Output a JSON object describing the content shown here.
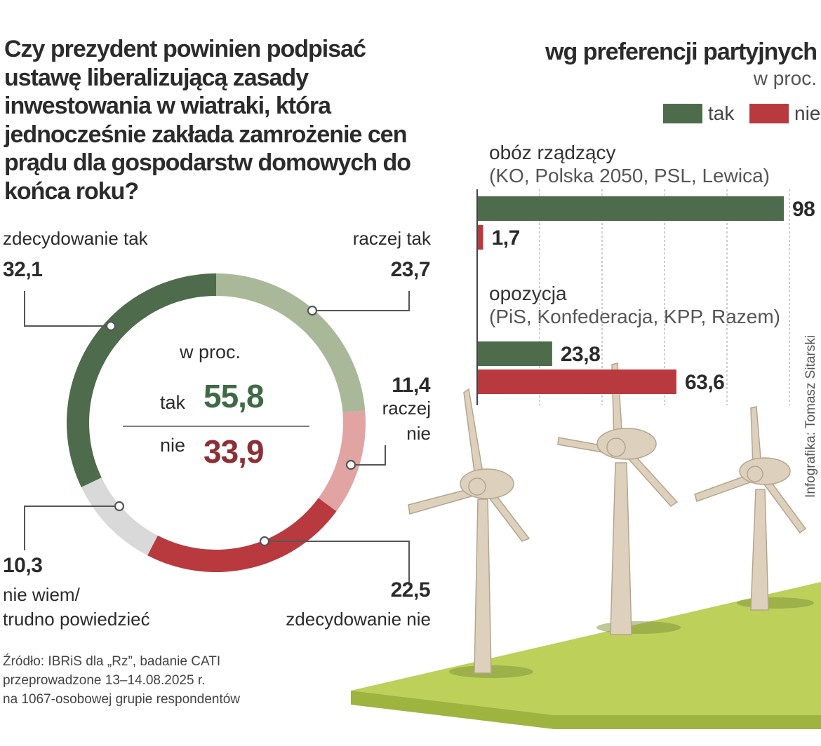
{
  "question": "Czy prezydent powinien podpisać ustawę liberalizującą zasady inwestowania w wiatraki, która jednocześnie zakłada zamrożenie cen prądu dla gospodarstw domowych do końca roku?",
  "colors": {
    "zdecydowanie_tak": "#4e6b4c",
    "raczej_tak": "#a9b898",
    "raczej_nie": "#e2a3a3",
    "zdecydowanie_nie": "#b83a3f",
    "nie_wiem": "#d9d9d9",
    "tak": "#4e6b4c",
    "nie": "#b83a3f",
    "tak_total": "#3e6a45",
    "nie_total": "#8d2f36"
  },
  "chart_data": [
    {
      "type": "pie",
      "subtype": "donut",
      "title": "Czy prezydent powinien podpisać ustawę liberalizującą zasady inwestowania w wiatraki, która jednocześnie zakłada zamrożenie cen prądu dla gospodarstw domowych do końca roku?",
      "unit": "w proc.",
      "slices": [
        {
          "label": "raczej tak",
          "value": 23.7,
          "value_label": "23,7"
        },
        {
          "label": "raczej nie",
          "value": 11.4,
          "value_label": "11,4"
        },
        {
          "label": "zdecydowanie nie",
          "value": 22.5,
          "value_label": "22,5"
        },
        {
          "label": "nie wiem/ trudno powiedzieć",
          "value": 10.3,
          "value_label": "10,3"
        },
        {
          "label": "zdecydowanie tak",
          "value": 32.1,
          "value_label": "32,1"
        }
      ],
      "center": {
        "unit_label": "w proc.",
        "tak_label": "tak",
        "tak_value": "55,8",
        "nie_label": "nie",
        "nie_value": "33,9"
      },
      "labels": {
        "zdecydowanie_tak_label": "zdecydowanie tak",
        "zdecydowanie_tak_value": "32,1",
        "raczej_tak_label": "raczej tak",
        "raczej_tak_value": "23,7",
        "raczej_nie_value": "11,4",
        "raczej_nie_line1": "raczej",
        "raczej_nie_line2": "nie",
        "zdecydowanie_nie_value": "22,5",
        "zdecydowanie_nie_label": "zdecydowanie nie",
        "nie_wiem_value": "10,3",
        "nie_wiem_line1": "nie wiem/",
        "nie_wiem_line2": "trudno powiedzieć"
      }
    },
    {
      "type": "bar",
      "orientation": "horizontal",
      "title": "wg preferencji partyjnych",
      "subtitle": "w proc.",
      "legend": [
        "tak",
        "nie"
      ],
      "xlim": [
        0,
        100
      ],
      "groups": [
        {
          "name": "obóz rządzący",
          "detail": "(KO, Polska 2050, PSL, Lewica)",
          "tak": 98,
          "tak_label": "98",
          "nie": 1.7,
          "nie_label": "1,7"
        },
        {
          "name": "opozycja",
          "detail": "(PiS, Konfederacja, KPP, Razem)",
          "tak": 23.8,
          "tak_label": "23,8",
          "nie": 63.6,
          "nie_label": "63,6"
        }
      ]
    }
  ],
  "source": {
    "line1": "Źródło: IBRiS dla „Rz”, badanie CATI",
    "line2": "przeprowadzone 13–14.08.2025 r.",
    "line3": "na 1067-osobowej grupie respondentów"
  },
  "credit": "Infografika: Tomasz Sitarski"
}
